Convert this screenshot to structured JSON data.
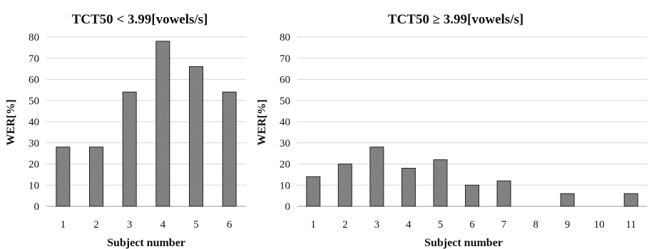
{
  "chart_data": [
    {
      "type": "bar",
      "title": "TCT50 < 3.99[vowels/s]",
      "xlabel": "Subject number",
      "ylabel": "WER[%]",
      "ylim": [
        0,
        80
      ],
      "yticks": [
        0,
        10,
        20,
        30,
        40,
        50,
        60,
        70,
        80
      ],
      "grid": true,
      "categories": [
        "1",
        "2",
        "3",
        "4",
        "5",
        "6"
      ],
      "values": [
        28,
        28,
        54,
        78,
        66,
        54
      ],
      "bar_color": "#7f7f7f"
    },
    {
      "type": "bar",
      "title": "TCT50 ≥ 3.99[vowels/s]",
      "xlabel": "Subject number",
      "ylabel": "WER[%]",
      "ylim": [
        0,
        80
      ],
      "yticks": [
        0,
        10,
        20,
        30,
        40,
        50,
        60,
        70,
        80
      ],
      "grid": true,
      "categories": [
        "1",
        "2",
        "3",
        "4",
        "5",
        "6",
        "7",
        "8",
        "9",
        "10",
        "11"
      ],
      "values": [
        14,
        20,
        28,
        18,
        22,
        10,
        12,
        0,
        6,
        0,
        6
      ],
      "bar_color": "#7f7f7f"
    }
  ]
}
